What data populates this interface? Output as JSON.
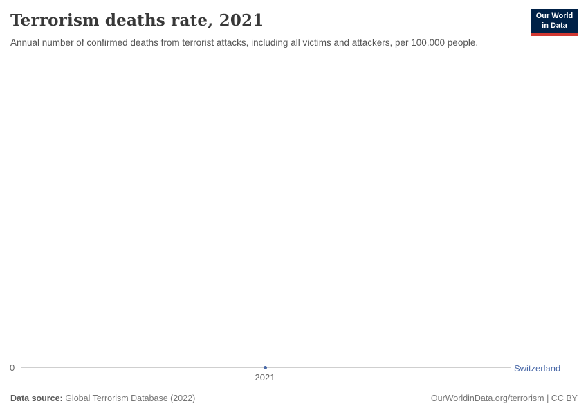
{
  "header": {
    "title": "Terrorism deaths rate, 2021",
    "subtitle": "Annual number of confirmed deaths from terrorist attacks, including all victims and attackers, per 100,000 people."
  },
  "logo": {
    "line1": "Our World",
    "line2": "in Data",
    "background_color": "#002147",
    "accent_color": "#d13832"
  },
  "chart": {
    "y_zero_label": "0",
    "x_tick_label": "2021",
    "entity_label": "Switzerland",
    "entity_color": "#4a69a8",
    "axis_line_color": "#cfcfcf"
  },
  "footer": {
    "source_label": "Data source:",
    "source_value": " Global Terrorism Database (2022)",
    "attribution": "OurWorldinData.org/terrorism | CC BY"
  },
  "chart_data": {
    "type": "line",
    "title": "Terrorism deaths rate, 2021",
    "subtitle": "Annual number of confirmed deaths from terrorist attacks, including all victims and attackers, per 100,000 people.",
    "x": [
      2021
    ],
    "x_ticks": [
      "2021"
    ],
    "y_ticks": [
      "0"
    ],
    "ylim_shown_min": 0,
    "grid": false,
    "legend_position": "inline-right",
    "series": [
      {
        "name": "Switzerland",
        "values": [
          0
        ],
        "color": "#4a69a8"
      }
    ]
  }
}
